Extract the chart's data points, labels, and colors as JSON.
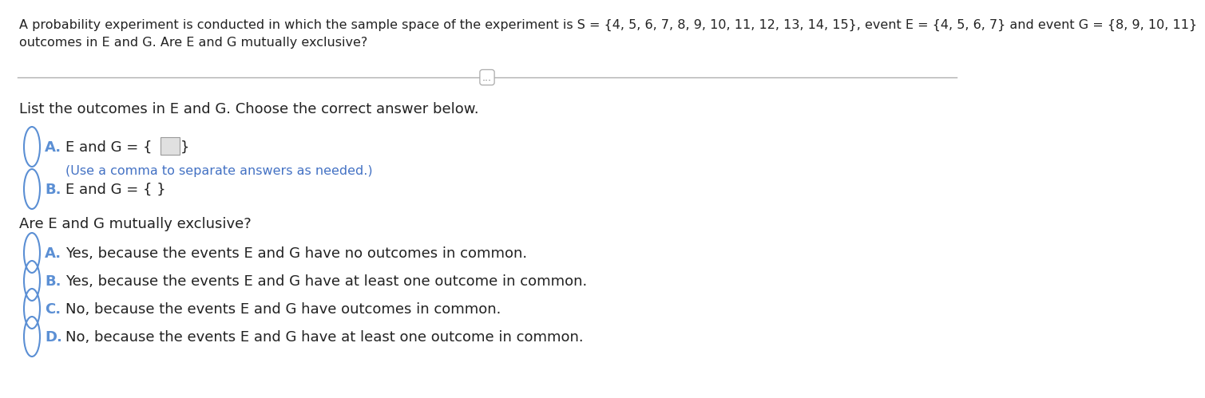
{
  "bg_color": "#ffffff",
  "header_line1": "A probability experiment is conducted in which the sample space of the experiment is S = {4, 5, 6, 7, 8, 9, 10, 11, 12, 13, 14, 15}, event E = {4, 5, 6, 7} and event G = {8, 9, 10, 11}",
  "header_line2": "outcomes in E and G. Are E and G mutually exclusive?",
  "dots_text": "...",
  "section1_text": "List the outcomes in E and G. Choose the correct answer below.",
  "optA_label": "A.",
  "optA_main": "E and G = {",
  "optA_close": "}",
  "optA_sub": "(Use a comma to separate answers as needed.)",
  "optB_label": "B.",
  "optB_main": "E and G = { }",
  "section2_text": "Are E and G mutually exclusive?",
  "ans_A_label": "A.",
  "ans_A_text": "Yes, because the events E and G have no outcomes in common.",
  "ans_B_label": "B.",
  "ans_B_text": "Yes, because the events E and G have at least one outcome in common.",
  "ans_C_label": "C.",
  "ans_C_text": "No, because the events E and G have outcomes in common.",
  "ans_D_label": "D.",
  "ans_D_text": "No, because the events E and G have at least one outcome in common.",
  "circle_color": "#5b8fd4",
  "label_color": "#5b8fd4",
  "subtext_color": "#4472c4",
  "text_color": "#222222",
  "line_color": "#b0b0b0",
  "fs_header": 11.5,
  "fs_body": 13.0,
  "fs_sub": 11.5
}
